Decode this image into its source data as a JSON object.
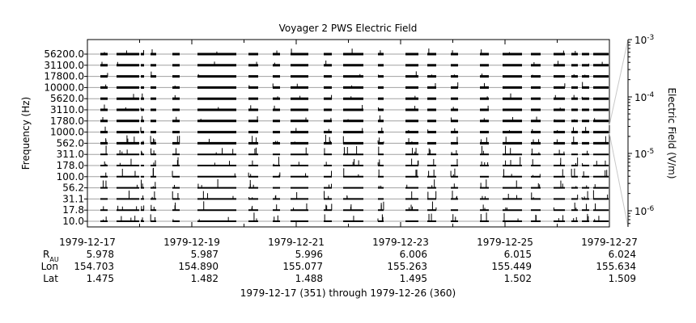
{
  "chart_data": {
    "type": "line",
    "title": "Voyager 2 PWS Electric Field",
    "ylabel": "Frequency (Hz)",
    "y2label": "Electric Field (V/m)",
    "y2_scale": "log",
    "y2_ticks": [
      "10-3",
      "10-4",
      "10-5",
      "10-6"
    ],
    "channels": [
      "56200.0",
      "31100.0",
      "17800.0",
      "10000.0",
      "5620.0",
      "3110.0",
      "1780.0",
      "1000.0",
      "562.0",
      "311.0",
      "178.0",
      "100.0",
      "56.2",
      "31.1",
      "17.8",
      "10.0"
    ],
    "grid": "horizontal lines at each channel",
    "x_ticks": [
      "1979-12-17",
      "1979-12-19",
      "1979-12-21",
      "1979-12-23",
      "1979-12-25",
      "1979-12-27"
    ],
    "ephemeris": {
      "labels": {
        "r_main": "R",
        "r_sub": "AU",
        "lon": "Lon",
        "lat": "Lat"
      },
      "r_au": [
        "5.978",
        "5.987",
        "5.996",
        "6.006",
        "6.015",
        "6.024"
      ],
      "lon": [
        "154.703",
        "154.890",
        "155.077",
        "155.263",
        "155.449",
        "155.634"
      ],
      "lat": [
        "1.475",
        "1.482",
        "1.488",
        "1.495",
        "1.502",
        "1.509"
      ]
    },
    "xlabel": "1979-12-17 (351) through 1979-12-26 (360)"
  }
}
